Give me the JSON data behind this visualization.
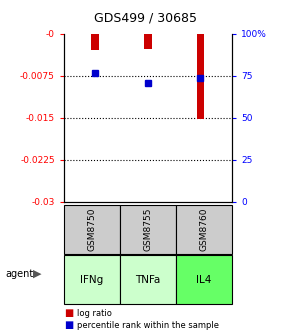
{
  "title": "GDS499 / 30685",
  "samples": [
    "GSM8750",
    "GSM8755",
    "GSM8760"
  ],
  "agents": [
    "IFNg",
    "TNFa",
    "IL4"
  ],
  "log_ratios": [
    -0.0029,
    -0.0028,
    -0.0152
  ],
  "percentile_ranks": [
    76.5,
    70.5,
    73.5
  ],
  "left_ylim": [
    -0.03,
    0.0
  ],
  "right_ylim": [
    0,
    100
  ],
  "left_yticks": [
    0.0,
    -0.0075,
    -0.015,
    -0.0225,
    -0.03
  ],
  "right_yticks": [
    0,
    25,
    50,
    75,
    100
  ],
  "left_ytick_labels": [
    "-0",
    "-0.0075",
    "-0.015",
    "-0.0225",
    "-0.03"
  ],
  "right_ytick_labels": [
    "0",
    "25",
    "50",
    "75",
    "100%"
  ],
  "hline_values": [
    -0.0075,
    -0.015,
    -0.0225
  ],
  "bar_color": "#cc0000",
  "dot_color": "#0000cc",
  "sample_box_color": "#cccccc",
  "agent_colors": [
    "#ccffcc",
    "#ccffcc",
    "#66ff66"
  ],
  "legend_bar_color": "#cc0000",
  "legend_dot_color": "#0000cc"
}
